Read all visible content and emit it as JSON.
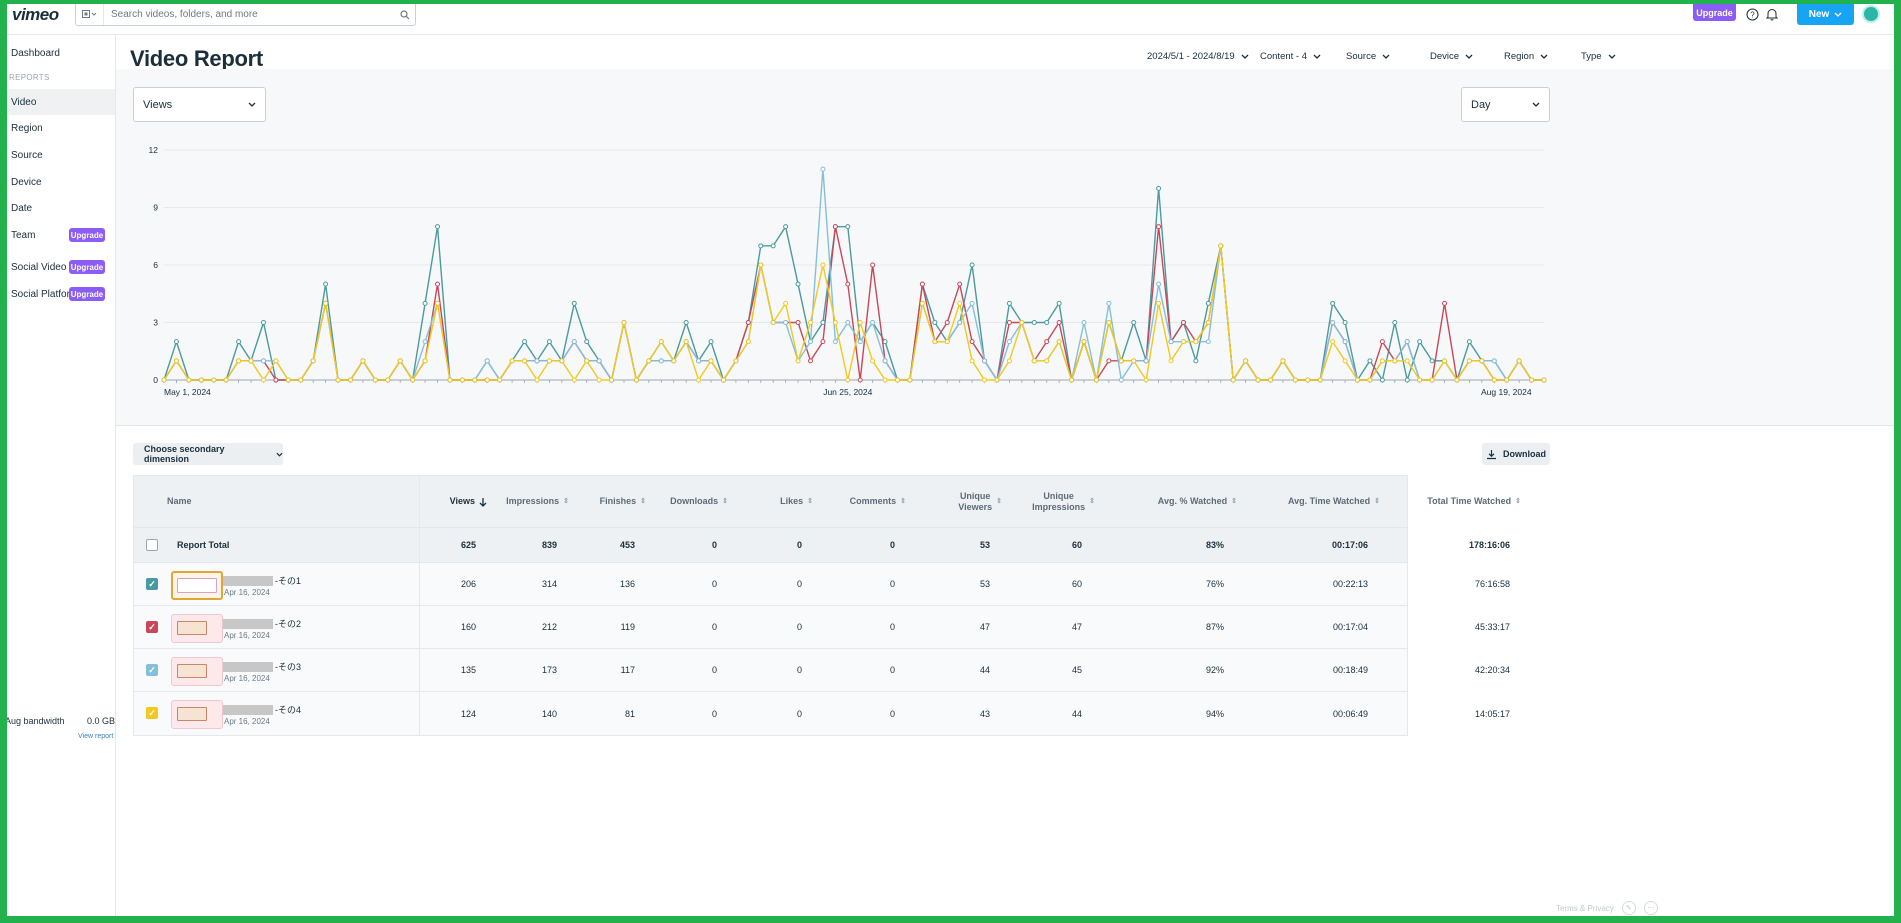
{
  "topbar": {
    "logo": "vimeo",
    "search_placeholder": "Search videos, folders, and more",
    "upgrade_label": "Upgrade",
    "new_label": "New"
  },
  "sidebar": {
    "dashboard": "Dashboard",
    "reports_heading": "REPORTS",
    "items": [
      {
        "label": "Video",
        "badge": ""
      },
      {
        "label": "Region",
        "badge": ""
      },
      {
        "label": "Source",
        "badge": ""
      },
      {
        "label": "Device",
        "badge": ""
      },
      {
        "label": "Date",
        "badge": ""
      },
      {
        "label": "Team",
        "badge": "Upgrade"
      },
      {
        "label": "Social Video",
        "badge": "Upgrade"
      },
      {
        "label": "Social Platform",
        "badge": "Upgrade"
      }
    ],
    "bandwidth_label": "Aug bandwidth",
    "bandwidth_value": "0.0 GB",
    "view_report": "View report"
  },
  "page": {
    "title": "Video Report",
    "filters": {
      "date_range": "2024/5/1 - 2024/8/19",
      "content": "Content - 4",
      "source": "Source",
      "device": "Device",
      "region": "Region",
      "type": "Type"
    },
    "metric_select": "Views",
    "interval_select": "Day",
    "secondary_dimension": "Choose secondary dimension",
    "download": "Download"
  },
  "chart_data": {
    "type": "line",
    "title": "",
    "ylabel": "",
    "xlabel": "",
    "ylim": [
      0,
      12
    ],
    "yticks": [
      "0",
      "3",
      "6",
      "9",
      "12"
    ],
    "x_start": "2024-05-01",
    "x_labels": [
      {
        "label": "May 1, 2024",
        "index": 0
      },
      {
        "label": "Jun 25, 2024",
        "index": 55
      },
      {
        "label": "Aug 19, 2024",
        "index": 110
      }
    ],
    "series": [
      {
        "color": "#4a9aa0",
        "values": [
          0,
          2,
          0,
          0,
          0,
          0,
          2,
          1,
          3,
          0,
          0,
          0,
          1,
          5,
          0,
          0,
          1,
          0,
          0,
          1,
          0,
          4,
          8,
          0,
          0,
          0,
          1,
          0,
          1,
          2,
          1,
          2,
          1,
          4,
          2,
          1,
          0,
          3,
          0,
          1,
          2,
          1,
          3,
          1,
          2,
          0,
          1,
          3,
          7,
          7,
          8,
          5,
          2,
          3,
          8,
          8,
          2,
          3,
          2,
          0,
          0,
          5,
          3,
          2,
          3,
          6,
          1,
          0,
          4,
          3,
          3,
          3,
          4,
          0,
          2,
          0,
          3,
          1,
          3,
          1,
          10,
          2,
          3,
          1,
          4,
          7,
          0,
          1,
          0,
          0,
          1,
          0,
          0,
          0,
          4,
          3,
          0,
          1,
          0,
          3,
          0,
          2,
          1,
          1,
          0,
          2,
          1,
          1,
          0,
          1,
          0,
          0
        ]
      },
      {
        "color": "#c8485a",
        "values": [
          0,
          1,
          0,
          0,
          0,
          0,
          1,
          1,
          1,
          0,
          0,
          0,
          1,
          4,
          0,
          0,
          1,
          0,
          0,
          1,
          0,
          1,
          5,
          0,
          0,
          0,
          0,
          0,
          1,
          1,
          1,
          1,
          1,
          2,
          1,
          1,
          0,
          3,
          0,
          1,
          1,
          1,
          2,
          1,
          1,
          0,
          1,
          3,
          6,
          3,
          3,
          3,
          1,
          2,
          8,
          5,
          0,
          6,
          1,
          0,
          0,
          5,
          2,
          3,
          5,
          2,
          1,
          0,
          3,
          3,
          1,
          2,
          3,
          0,
          2,
          0,
          1,
          1,
          1,
          1,
          8,
          2,
          3,
          2,
          3,
          7,
          0,
          1,
          0,
          0,
          1,
          0,
          0,
          0,
          3,
          2,
          0,
          0,
          2,
          1,
          2,
          0,
          0,
          4,
          0,
          1,
          1,
          0,
          0,
          1,
          0,
          0
        ]
      },
      {
        "color": "#85bfdc",
        "values": [
          0,
          1,
          0,
          0,
          0,
          0,
          1,
          1,
          1,
          1,
          0,
          0,
          1,
          4,
          0,
          0,
          1,
          0,
          0,
          1,
          0,
          2,
          4,
          0,
          0,
          0,
          1,
          0,
          1,
          1,
          1,
          1,
          1,
          2,
          1,
          1,
          0,
          3,
          0,
          1,
          1,
          1,
          2,
          1,
          1,
          0,
          1,
          2,
          6,
          3,
          3,
          1,
          2,
          11,
          2,
          3,
          2,
          3,
          1,
          0,
          0,
          4,
          2,
          2,
          3,
          4,
          1,
          0,
          2,
          3,
          1,
          1,
          2,
          0,
          3,
          0,
          4,
          0,
          1,
          1,
          5,
          2,
          2,
          2,
          2,
          7,
          0,
          1,
          0,
          0,
          1,
          0,
          0,
          0,
          3,
          2,
          0,
          0,
          1,
          1,
          2,
          0,
          0,
          1,
          0,
          1,
          1,
          1,
          0,
          1,
          0,
          0
        ]
      },
      {
        "color": "#f2c91e",
        "values": [
          0,
          1,
          0,
          0,
          0,
          0,
          1,
          1,
          0,
          1,
          0,
          0,
          1,
          4,
          0,
          0,
          1,
          0,
          0,
          1,
          0,
          1,
          4,
          0,
          0,
          0,
          0,
          0,
          1,
          1,
          0,
          1,
          1,
          0,
          1,
          0,
          0,
          3,
          0,
          1,
          2,
          1,
          2,
          0,
          1,
          0,
          1,
          2,
          6,
          3,
          4,
          1,
          3,
          6,
          3,
          0,
          3,
          1,
          0,
          0,
          0,
          4,
          2,
          2,
          4,
          1,
          0,
          0,
          1,
          3,
          1,
          1,
          2,
          0,
          2,
          0,
          3,
          1,
          1,
          0,
          4,
          1,
          2,
          2,
          3,
          7,
          0,
          1,
          0,
          0,
          1,
          0,
          0,
          0,
          2,
          1,
          0,
          0,
          1,
          1,
          1,
          0,
          0,
          1,
          0,
          1,
          1,
          0,
          0,
          1,
          0,
          0
        ]
      }
    ]
  },
  "table": {
    "headers": {
      "name": "Name",
      "views": "Views",
      "impressions": "Impressions",
      "finishes": "Finishes",
      "downloads": "Downloads",
      "likes": "Likes",
      "comments": "Comments",
      "unique_viewers_1": "Unique",
      "unique_viewers_2": "Viewers",
      "unique_impressions_1": "Unique",
      "unique_impressions_2": "Impressions",
      "avg_pct": "Avg. % Watched",
      "avg_time": "Avg. Time Watched",
      "total_time": "Total Time Watched"
    },
    "total": {
      "label": "Report Total",
      "views": "625",
      "impressions": "839",
      "finishes": "453",
      "downloads": "0",
      "likes": "0",
      "comments": "0",
      "unique_viewers": "53",
      "unique_impressions": "60",
      "avg_pct": "83%",
      "avg_time": "00:17:06",
      "total_time": "178:16:06"
    },
    "rows": [
      {
        "title_suffix": "-その1",
        "date": "Apr 16, 2024",
        "color": "#4a9aa0",
        "views": "206",
        "impressions": "314",
        "finishes": "136",
        "downloads": "0",
        "likes": "0",
        "comments": "0",
        "unique_viewers": "53",
        "unique_impressions": "60",
        "avg_pct": "76%",
        "avg_time": "00:22:13",
        "total_time": "76:16:58"
      },
      {
        "title_suffix": "-その2",
        "date": "Apr 16, 2024",
        "color": "#c8485a",
        "views": "160",
        "impressions": "212",
        "finishes": "119",
        "downloads": "0",
        "likes": "0",
        "comments": "0",
        "unique_viewers": "47",
        "unique_impressions": "47",
        "avg_pct": "87%",
        "avg_time": "00:17:04",
        "total_time": "45:33:17"
      },
      {
        "title_suffix": "-その3",
        "date": "Apr 16, 2024",
        "color": "#85bfdc",
        "views": "135",
        "impressions": "173",
        "finishes": "117",
        "downloads": "0",
        "likes": "0",
        "comments": "0",
        "unique_viewers": "44",
        "unique_impressions": "45",
        "avg_pct": "92%",
        "avg_time": "00:18:49",
        "total_time": "42:20:34"
      },
      {
        "title_suffix": "-その4",
        "date": "Apr 16, 2024",
        "color": "#f2c91e",
        "views": "124",
        "impressions": "140",
        "finishes": "81",
        "downloads": "0",
        "likes": "0",
        "comments": "0",
        "unique_viewers": "43",
        "unique_impressions": "44",
        "avg_pct": "94%",
        "avg_time": "00:06:49",
        "total_time": "14:05:17"
      }
    ]
  },
  "footer": {
    "terms": "Terms & Privacy"
  }
}
